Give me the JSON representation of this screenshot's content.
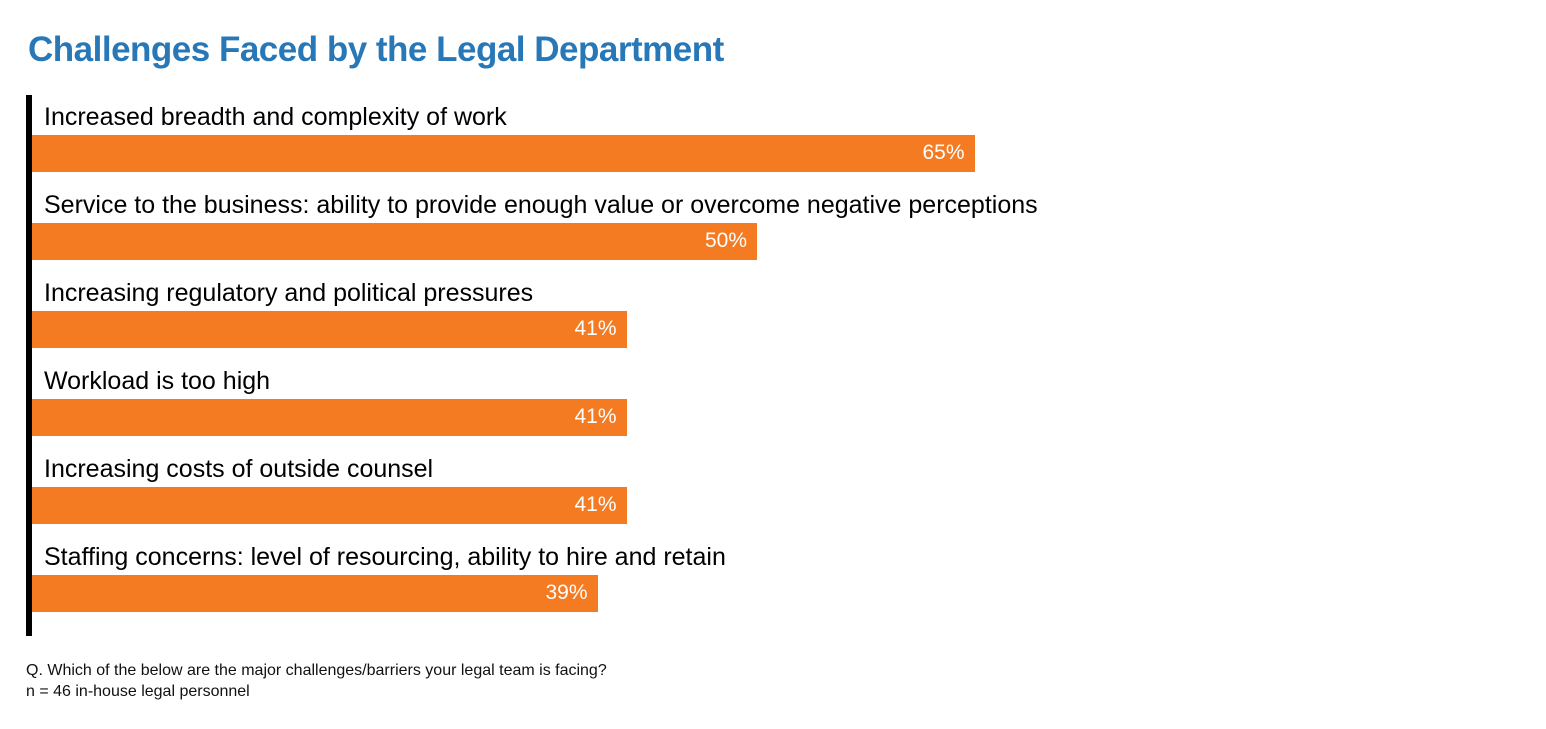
{
  "chart_data": {
    "type": "bar",
    "orientation": "horizontal",
    "title": "Challenges Faced by the Legal Department",
    "categories": [
      "Increased breadth and complexity of work",
      "Service to the business: ability to provide enough value or overcome negative perceptions",
      "Increasing regulatory and political pressures",
      "Workload is too high",
      "Increasing costs of outside counsel",
      "Staffing concerns: level of resourcing, ability to hire and retain"
    ],
    "values": [
      65,
      50,
      41,
      41,
      41,
      39
    ],
    "value_labels": [
      "65%",
      "50%",
      "41%",
      "41%",
      "41%",
      "39%"
    ],
    "unit": "%",
    "xlim": [
      0,
      100
    ],
    "xlabel": "",
    "ylabel": "",
    "grid": false,
    "bar_color": "#f47b22",
    "title_color": "#2878b8"
  },
  "footnote": {
    "question": "Q. Which of the below are the major challenges/barriers your legal team is facing?",
    "sample": "n = 46 in-house legal personnel"
  }
}
